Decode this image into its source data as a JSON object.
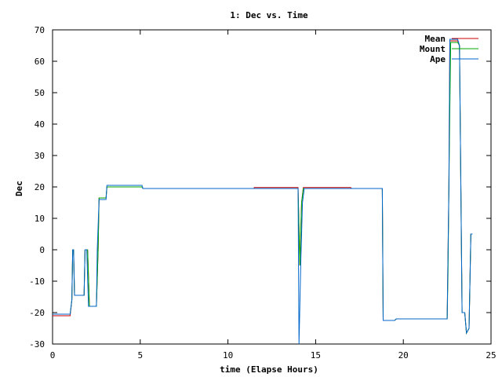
{
  "chart_data": {
    "type": "line",
    "title": "1: Dec vs. Time",
    "xlabel": "time (Elapse Hours)",
    "ylabel": "Dec",
    "xlim": [
      0,
      25
    ],
    "ylim": [
      -30,
      70
    ],
    "xticks": [
      0,
      5,
      10,
      15,
      20,
      25
    ],
    "yticks": [
      -30,
      -20,
      -10,
      0,
      10,
      20,
      30,
      40,
      50,
      60,
      70
    ],
    "grid": false,
    "legend_position": "top-right",
    "series": [
      {
        "name": "Mean",
        "color": "#cc0000",
        "points": [
          [
            0,
            -21
          ],
          [
            1,
            -21
          ],
          [
            1.1,
            -16
          ],
          [
            1.15,
            0
          ],
          [
            1.2,
            0
          ],
          [
            1.25,
            -14.5
          ],
          [
            1.8,
            -14.5
          ],
          [
            1.85,
            0
          ],
          [
            2,
            0
          ],
          [
            2.1,
            -18
          ],
          [
            2.5,
            -18
          ],
          [
            2.6,
            0
          ],
          [
            2.65,
            16.5
          ],
          [
            3.05,
            16.5
          ],
          [
            3.1,
            20
          ],
          [
            5.1,
            20
          ],
          [
            5.15,
            19.5
          ],
          [
            11.5,
            19.5
          ],
          [
            11.5,
            19.8
          ],
          [
            14,
            19.8
          ],
          [
            14.1,
            -5
          ],
          [
            14.2,
            15
          ],
          [
            14.3,
            19.8
          ],
          [
            17,
            19.8
          ],
          [
            17.05,
            19.5
          ],
          [
            18.8,
            19.5
          ],
          [
            18.85,
            -22.5
          ],
          [
            19.5,
            -22.5
          ],
          [
            19.6,
            -22
          ],
          [
            22.5,
            -22
          ],
          [
            22.6,
            20
          ],
          [
            22.65,
            66.5
          ],
          [
            23.1,
            66.5
          ],
          [
            23.2,
            65
          ],
          [
            23.35,
            -20
          ],
          [
            23.5,
            -20
          ],
          [
            23.6,
            -26.5
          ],
          [
            23.75,
            -25
          ],
          [
            23.85,
            5
          ],
          [
            23.95,
            5
          ]
        ]
      },
      {
        "name": "Mount",
        "color": "#00aa00",
        "points": [
          [
            0,
            -20.5
          ],
          [
            1,
            -20.5
          ],
          [
            1.1,
            -16
          ],
          [
            1.15,
            0
          ],
          [
            1.2,
            0
          ],
          [
            1.25,
            -14.5
          ],
          [
            1.8,
            -14.5
          ],
          [
            1.85,
            0
          ],
          [
            2,
            0
          ],
          [
            2.1,
            -18
          ],
          [
            2.5,
            -18
          ],
          [
            2.6,
            0
          ],
          [
            2.65,
            16.5
          ],
          [
            3.05,
            16.5
          ],
          [
            3.1,
            20
          ],
          [
            5.1,
            20
          ],
          [
            5.15,
            19.5
          ],
          [
            14,
            19.5
          ],
          [
            14.1,
            -5
          ],
          [
            14.2,
            15
          ],
          [
            14.3,
            19.5
          ],
          [
            18.8,
            19.5
          ],
          [
            18.85,
            -22.5
          ],
          [
            19.5,
            -22.5
          ],
          [
            19.6,
            -22
          ],
          [
            22.5,
            -22
          ],
          [
            22.55,
            -7
          ],
          [
            22.6,
            20
          ],
          [
            22.65,
            45
          ],
          [
            22.7,
            66
          ],
          [
            23.1,
            66
          ],
          [
            23.2,
            65
          ],
          [
            23.35,
            -20
          ],
          [
            23.5,
            -20
          ],
          [
            23.6,
            -26.5
          ],
          [
            23.75,
            -25
          ],
          [
            23.85,
            5
          ],
          [
            23.95,
            5
          ]
        ]
      },
      {
        "name": "Ape",
        "color": "#0066cc",
        "points": [
          [
            0,
            -20.5
          ],
          [
            1,
            -20.5
          ],
          [
            1.1,
            -16
          ],
          [
            1.15,
            0
          ],
          [
            1.2,
            0
          ],
          [
            1.25,
            -14.5
          ],
          [
            1.8,
            -14.5
          ],
          [
            1.85,
            0
          ],
          [
            1.95,
            0
          ],
          [
            2.05,
            -18
          ],
          [
            2.5,
            -18
          ],
          [
            2.55,
            0
          ],
          [
            2.65,
            16
          ],
          [
            3.05,
            16
          ],
          [
            3.1,
            20.5
          ],
          [
            5.1,
            20.5
          ],
          [
            5.15,
            19.5
          ],
          [
            14,
            19.5
          ],
          [
            14.05,
            -30
          ],
          [
            14.15,
            -5
          ],
          [
            14.25,
            15
          ],
          [
            14.35,
            19.5
          ],
          [
            18.8,
            19.5
          ],
          [
            18.85,
            -22.5
          ],
          [
            19.5,
            -22.5
          ],
          [
            19.6,
            -22
          ],
          [
            22.5,
            -22
          ],
          [
            22.6,
            20
          ],
          [
            22.65,
            67
          ],
          [
            23.1,
            67
          ],
          [
            23.2,
            65
          ],
          [
            23.35,
            -20
          ],
          [
            23.5,
            -20
          ],
          [
            23.6,
            -26.5
          ],
          [
            23.75,
            -25
          ],
          [
            23.85,
            5
          ],
          [
            23.95,
            5
          ]
        ]
      }
    ]
  }
}
